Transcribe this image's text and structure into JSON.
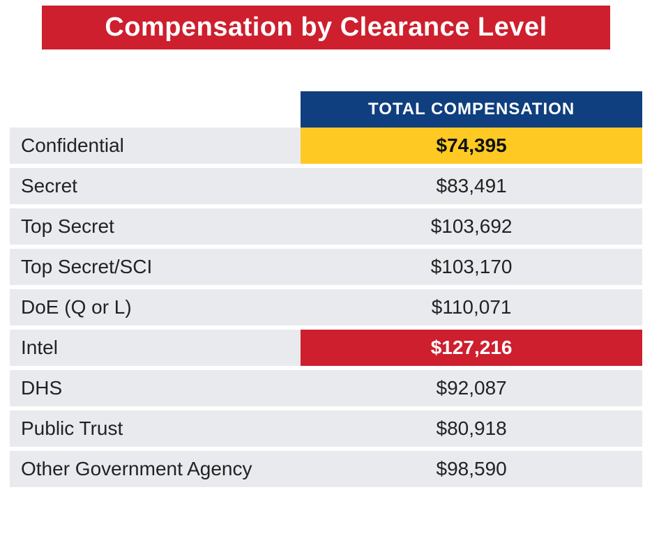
{
  "title": {
    "text": "Compensation by Clearance Level",
    "bg_color": "#cd1f2e",
    "text_color": "#ffffff",
    "fontsize": 38
  },
  "table": {
    "type": "table",
    "col_widths": [
      "46%",
      "54%"
    ],
    "header": {
      "label": "TOTAL COMPENSATION",
      "bg_color": "#0f3f7e",
      "text_color": "#ffffff",
      "fontsize": 24
    },
    "row_fontsize": 28,
    "row_text_color": "#222222",
    "rows": [
      {
        "label": "Confidential",
        "value": "$74,395",
        "label_bg": "#e8eaee",
        "value_bg": "#fec923",
        "value_bold": true,
        "value_color": "#111111"
      },
      {
        "label": "Secret",
        "value": "$83,491",
        "label_bg": "#e8eaee",
        "value_bg": "#e8eaee",
        "value_bold": false,
        "value_color": "#222222"
      },
      {
        "label": "Top Secret",
        "value": "$103,692",
        "label_bg": "#e8eaee",
        "value_bg": "#e8eaee",
        "value_bold": false,
        "value_color": "#222222"
      },
      {
        "label": "Top Secret/SCI",
        "value": "$103,170",
        "label_bg": "#e8eaee",
        "value_bg": "#e8eaee",
        "value_bold": false,
        "value_color": "#222222"
      },
      {
        "label": "DoE (Q or L)",
        "value": "$110,071",
        "label_bg": "#e8eaee",
        "value_bg": "#e8eaee",
        "value_bold": false,
        "value_color": "#222222"
      },
      {
        "label": "Intel",
        "value": "$127,216",
        "label_bg": "#e8eaee",
        "value_bg": "#cd1f2e",
        "value_bold": true,
        "value_color": "#ffffff"
      },
      {
        "label": "DHS",
        "value": "$92,087",
        "label_bg": "#e8eaee",
        "value_bg": "#e8eaee",
        "value_bold": false,
        "value_color": "#222222"
      },
      {
        "label": "Public Trust",
        "value": "$80,918",
        "label_bg": "#e8eaee",
        "value_bg": "#e8eaee",
        "value_bold": false,
        "value_color": "#222222"
      },
      {
        "label": "Other Government Agency",
        "value": "$98,590",
        "label_bg": "#e8eaee",
        "value_bg": "#e8eaee",
        "value_bold": false,
        "value_color": "#222222"
      }
    ],
    "row_gap_color": "#ffffff"
  }
}
